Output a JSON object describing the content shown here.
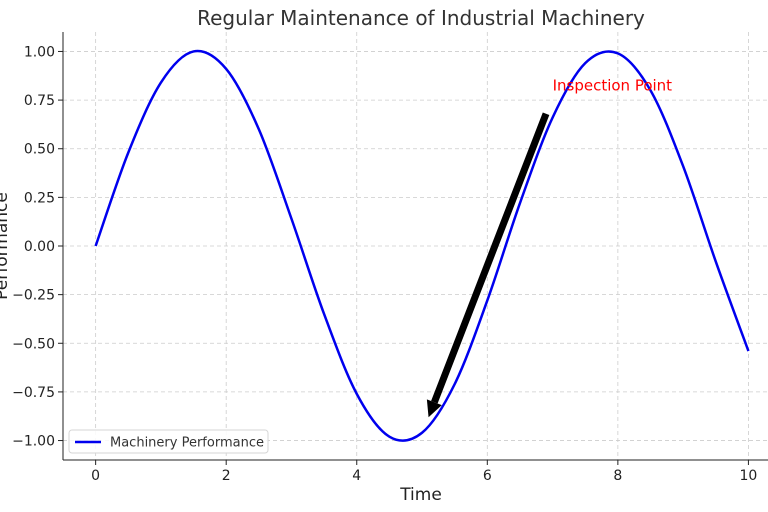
{
  "chart_data": {
    "type": "line",
    "title": "Regular Maintenance of Industrial Machinery",
    "xlabel": "Time",
    "ylabel": "Performance",
    "xlim": [
      -0.5,
      10.3
    ],
    "ylim": [
      -1.1,
      1.1
    ],
    "xticks": [
      0,
      2,
      4,
      6,
      8,
      10
    ],
    "xtick_labels": [
      "0",
      "2",
      "4",
      "6",
      "8",
      "10"
    ],
    "yticks": [
      1.0,
      0.75,
      0.5,
      0.25,
      0.0,
      -0.25,
      -0.5,
      -0.75,
      -1.0
    ],
    "ytick_labels": [
      "1.00",
      "0.75",
      "0.50",
      "0.25",
      "0.00",
      "−0.25",
      "−0.50",
      "−0.75",
      "−1.00"
    ],
    "grid": true,
    "legend_position": "lower-left",
    "series": [
      {
        "name": "Machinery Performance",
        "color": "#0000ee",
        "x": [
          0,
          0.5,
          1,
          1.5,
          2,
          2.5,
          3,
          3.5,
          4,
          4.5,
          5,
          5.5,
          6,
          6.5,
          7,
          7.5,
          8,
          8.5,
          9,
          9.5,
          10
        ],
        "y": [
          0.0,
          0.48,
          0.84,
          1.0,
          0.91,
          0.6,
          0.14,
          -0.35,
          -0.76,
          -0.98,
          -0.96,
          -0.71,
          -0.28,
          0.22,
          0.66,
          0.94,
          0.99,
          0.8,
          0.41,
          -0.08,
          -0.54
        ]
      }
    ],
    "annotation": {
      "text": "Inspection Point",
      "color": "#ff0000",
      "text_xy": [
        7.0,
        0.8
      ],
      "arrow_from": [
        6.9,
        0.68
      ],
      "arrow_to": [
        5.1,
        -0.88
      ],
      "arrow_color": "#000000"
    }
  }
}
